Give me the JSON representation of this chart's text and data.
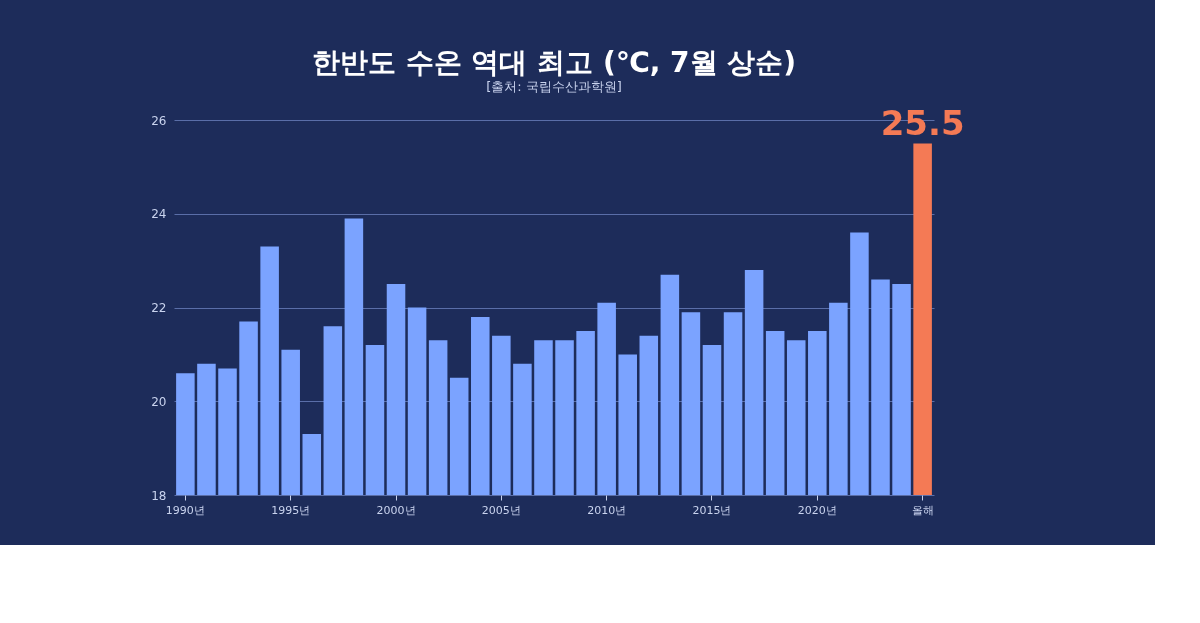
{
  "chart_data": {
    "type": "bar",
    "title": "한반도 수온 역대 최고 (℃, 7월 상순)",
    "subtitle": "[출처: 국립수산과학원]",
    "categories": [
      "1990년",
      null,
      null,
      null,
      null,
      "1995년",
      null,
      null,
      null,
      null,
      "2000년",
      null,
      null,
      null,
      null,
      "2005년",
      null,
      null,
      null,
      null,
      "2010년",
      null,
      null,
      null,
      null,
      "2015년",
      null,
      null,
      null,
      null,
      "2020년",
      null,
      null,
      null,
      null,
      "올해"
    ],
    "values": [
      20.6,
      20.8,
      20.7,
      21.7,
      23.3,
      21.1,
      19.3,
      21.6,
      23.9,
      21.2,
      22.5,
      22.0,
      21.3,
      20.5,
      21.8,
      21.4,
      20.8,
      21.3,
      21.3,
      21.5,
      22.1,
      21.0,
      21.4,
      22.7,
      21.9,
      21.2,
      21.9,
      22.8,
      21.5,
      21.3,
      21.5,
      22.1,
      23.6,
      22.6,
      22.5,
      25.5
    ],
    "colors": [
      "#7ba3ff",
      "#7ba3ff",
      "#7ba3ff",
      "#7ba3ff",
      "#7ba3ff",
      "#7ba3ff",
      "#7ba3ff",
      "#7ba3ff",
      "#7ba3ff",
      "#7ba3ff",
      "#7ba3ff",
      "#7ba3ff",
      "#7ba3ff",
      "#7ba3ff",
      "#7ba3ff",
      "#7ba3ff",
      "#7ba3ff",
      "#7ba3ff",
      "#7ba3ff",
      "#7ba3ff",
      "#7ba3ff",
      "#7ba3ff",
      "#7ba3ff",
      "#7ba3ff",
      "#7ba3ff",
      "#7ba3ff",
      "#7ba3ff",
      "#7ba3ff",
      "#7ba3ff",
      "#7ba3ff",
      "#7ba3ff",
      "#7ba3ff",
      "#7ba3ff",
      "#7ba3ff",
      "#7ba3ff",
      "#f47a55"
    ],
    "value_labels": [
      null,
      null,
      null,
      null,
      null,
      null,
      null,
      null,
      null,
      null,
      null,
      null,
      null,
      null,
      null,
      null,
      null,
      null,
      null,
      null,
      null,
      null,
      null,
      null,
      null,
      null,
      null,
      null,
      null,
      null,
      null,
      null,
      null,
      null,
      null,
      "25.5"
    ],
    "ylim": [
      18,
      26
    ],
    "yticks": [
      18,
      20,
      22,
      24,
      26
    ],
    "grid": "y"
  }
}
